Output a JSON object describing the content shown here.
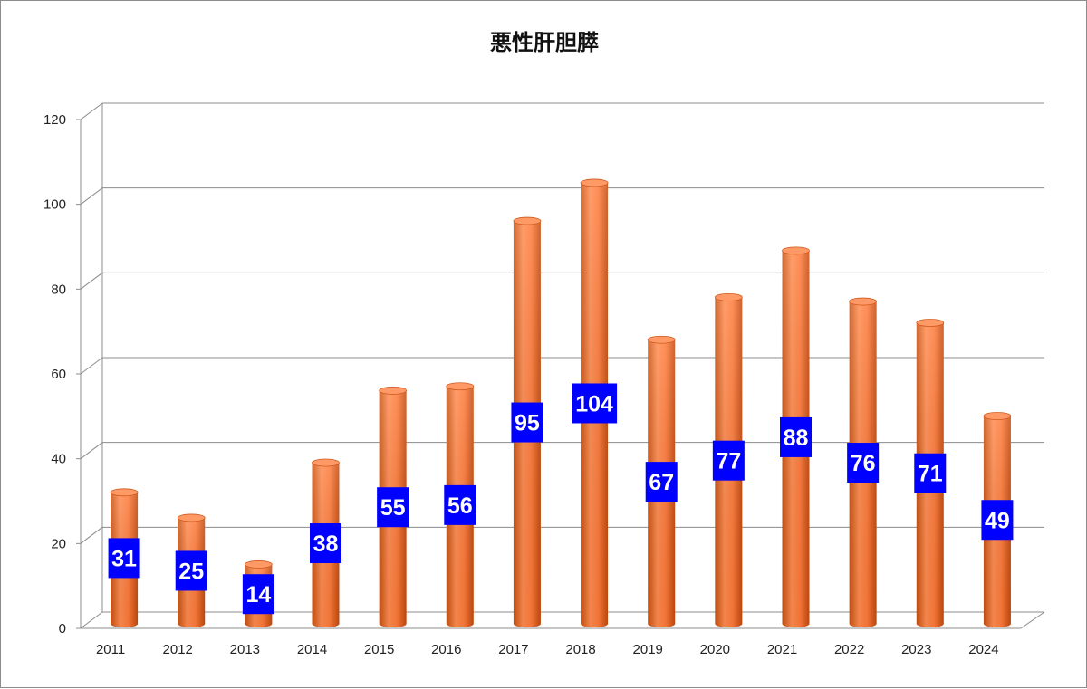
{
  "chart_data": {
    "type": "bar",
    "title": "悪性肝胆膵",
    "categories": [
      "2011",
      "2012",
      "2013",
      "2014",
      "2015",
      "2016",
      "2017",
      "2018",
      "2019",
      "2020",
      "2021",
      "2022",
      "2023",
      "2024"
    ],
    "series": [
      {
        "values": [
          31,
          25,
          14,
          38,
          55,
          56,
          95,
          104,
          67,
          77,
          88,
          76,
          71,
          49
        ]
      }
    ],
    "ylim": [
      0,
      120
    ],
    "yticks": [
      0,
      20,
      40,
      60,
      80,
      100,
      120
    ],
    "xlabel": "",
    "ylabel": "",
    "grid": true,
    "legend": "none",
    "style": "3d-cylinder",
    "colors": {
      "bar_light": "#ffa070",
      "bar_dark": "#e65a1a",
      "label_bg": "#0000ff",
      "label_text": "#ffffff",
      "grid": "#8c8c8c"
    }
  }
}
